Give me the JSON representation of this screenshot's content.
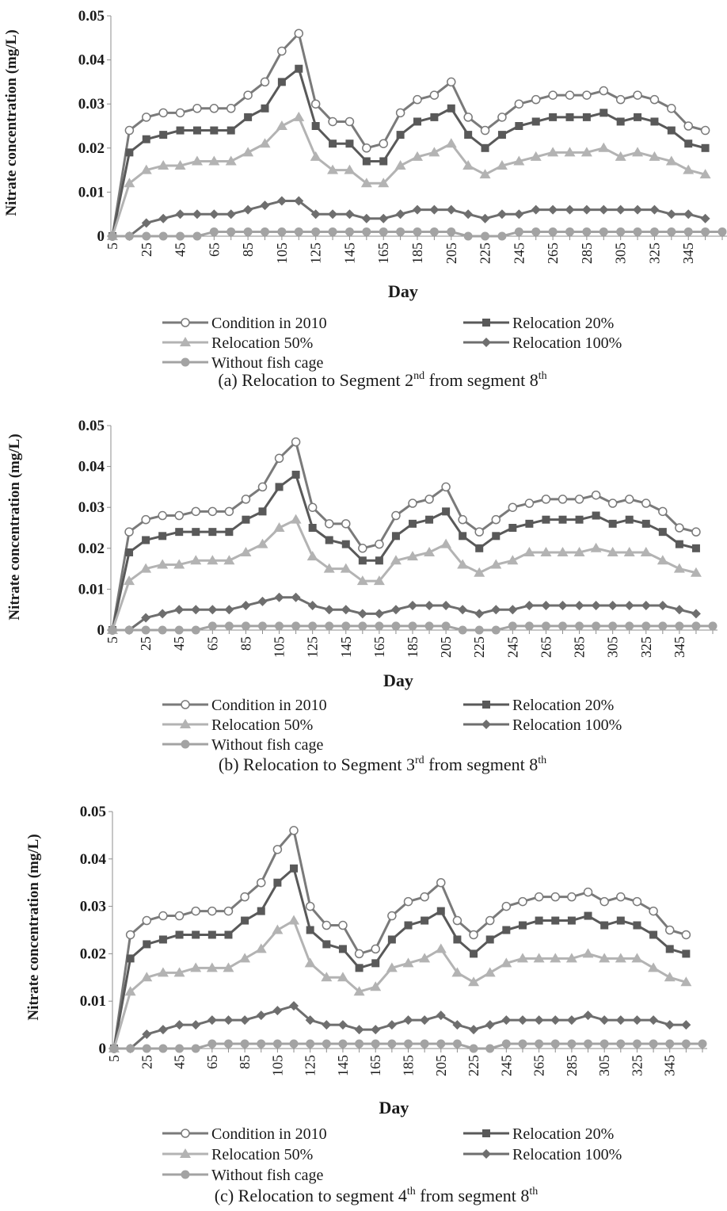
{
  "chart_data": [
    {
      "type": "line",
      "panel": "a",
      "caption_parts": [
        "(a)  Relocation to Segment 2",
        "nd",
        " from segment 8",
        "th"
      ],
      "xlabel": "Day",
      "ylabel": "Nitrate concentration (mg/L)",
      "ylim": [
        0,
        0.05
      ],
      "yticks": [
        "0",
        "0.01",
        "0.02",
        "0.03",
        "0.04",
        "0.05"
      ],
      "xticks": [
        "5",
        "25",
        "45",
        "65",
        "85",
        "105",
        "125",
        "145",
        "165",
        "185",
        "205",
        "225",
        "245",
        "265",
        "285",
        "305",
        "325",
        "345"
      ],
      "x": [
        5,
        15,
        25,
        35,
        45,
        55,
        65,
        75,
        85,
        95,
        105,
        115,
        125,
        135,
        145,
        155,
        165,
        175,
        185,
        195,
        205,
        215,
        225,
        235,
        245,
        255,
        265,
        275,
        285,
        295,
        305,
        315,
        325,
        335,
        345,
        355,
        365
      ],
      "grid": false,
      "legend_position": "bottom",
      "series": [
        {
          "name": "Condition in 2010",
          "marker": "circle-open",
          "color": "#7a7a7a",
          "values": [
            0,
            0.024,
            0.027,
            0.028,
            0.028,
            0.029,
            0.029,
            0.029,
            0.032,
            0.035,
            0.042,
            0.046,
            0.03,
            0.026,
            0.026,
            0.02,
            0.021,
            0.028,
            0.031,
            0.032,
            0.035,
            0.027,
            0.024,
            0.027,
            0.03,
            0.031,
            0.032,
            0.032,
            0.032,
            0.033,
            0.031,
            0.032,
            0.031,
            0.029,
            0.025,
            0.024,
            null
          ]
        },
        {
          "name": "Relocation 20%",
          "marker": "square",
          "color": "#595959",
          "values": [
            0,
            0.019,
            0.022,
            0.023,
            0.024,
            0.024,
            0.024,
            0.024,
            0.027,
            0.029,
            0.035,
            0.038,
            0.025,
            0.021,
            0.021,
            0.017,
            0.017,
            0.023,
            0.026,
            0.027,
            0.029,
            0.023,
            0.02,
            0.023,
            0.025,
            0.026,
            0.027,
            0.027,
            0.027,
            0.028,
            0.026,
            0.027,
            0.026,
            0.024,
            0.021,
            0.02,
            null
          ]
        },
        {
          "name": "Relocation 50%",
          "marker": "triangle",
          "color": "#b3b3b3",
          "values": [
            0,
            0.012,
            0.015,
            0.016,
            0.016,
            0.017,
            0.017,
            0.017,
            0.019,
            0.021,
            0.025,
            0.027,
            0.018,
            0.015,
            0.015,
            0.012,
            0.012,
            0.016,
            0.018,
            0.019,
            0.021,
            0.016,
            0.014,
            0.016,
            0.017,
            0.018,
            0.019,
            0.019,
            0.019,
            0.02,
            0.018,
            0.019,
            0.018,
            0.017,
            0.015,
            0.014,
            null
          ]
        },
        {
          "name": "Relocation 100%",
          "marker": "diamond",
          "color": "#6e6e6e",
          "values": [
            0,
            0,
            0.003,
            0.004,
            0.005,
            0.005,
            0.005,
            0.005,
            0.006,
            0.007,
            0.008,
            0.008,
            0.005,
            0.005,
            0.005,
            0.004,
            0.004,
            0.005,
            0.006,
            0.006,
            0.006,
            0.005,
            0.004,
            0.005,
            0.005,
            0.006,
            0.006,
            0.006,
            0.006,
            0.006,
            0.006,
            0.006,
            0.006,
            0.005,
            0.005,
            0.004,
            null
          ]
        },
        {
          "name": "Without fish cage",
          "marker": "circle",
          "color": "#a3a3a3",
          "values": [
            0,
            0,
            0,
            0,
            0,
            0,
            0.001,
            0.001,
            0.001,
            0.001,
            0.001,
            0.001,
            0.001,
            0.001,
            0.001,
            0.001,
            0.001,
            0.001,
            0.001,
            0.001,
            0.001,
            0,
            0,
            0,
            0.001,
            0.001,
            0.001,
            0.001,
            0.001,
            0.001,
            0.001,
            0.001,
            0.001,
            0.001,
            0.001,
            0.001,
            0.001
          ]
        }
      ]
    },
    {
      "type": "line",
      "panel": "b",
      "caption_parts": [
        "(b)  Relocation to Segment 3",
        "rd",
        " from segment 8",
        "th"
      ],
      "xlabel": "Day",
      "ylabel": "Nitrate concentration (mg/L)",
      "ylim": [
        0,
        0.05
      ],
      "yticks": [
        "0",
        "0.01",
        "0.02",
        "0.03",
        "0.04",
        "0.05"
      ],
      "xticks": [
        "5",
        "25",
        "45",
        "65",
        "85",
        "105",
        "125",
        "145",
        "165",
        "185",
        "205",
        "225",
        "245",
        "265",
        "285",
        "305",
        "325",
        "345"
      ],
      "x": [
        5,
        15,
        25,
        35,
        45,
        55,
        65,
        75,
        85,
        95,
        105,
        115,
        125,
        135,
        145,
        155,
        165,
        175,
        185,
        195,
        205,
        215,
        225,
        235,
        245,
        255,
        265,
        275,
        285,
        295,
        305,
        315,
        325,
        335,
        345,
        355,
        365
      ],
      "grid": false,
      "legend_position": "bottom",
      "series": [
        {
          "name": "Condition in 2010",
          "marker": "circle-open",
          "color": "#7a7a7a",
          "values": [
            0,
            0.024,
            0.027,
            0.028,
            0.028,
            0.029,
            0.029,
            0.029,
            0.032,
            0.035,
            0.042,
            0.046,
            0.03,
            0.026,
            0.026,
            0.02,
            0.021,
            0.028,
            0.031,
            0.032,
            0.035,
            0.027,
            0.024,
            0.027,
            0.03,
            0.031,
            0.032,
            0.032,
            0.032,
            0.033,
            0.031,
            0.032,
            0.031,
            0.029,
            0.025,
            0.024,
            null
          ]
        },
        {
          "name": "Relocation 20%",
          "marker": "square",
          "color": "#595959",
          "values": [
            0,
            0.019,
            0.022,
            0.023,
            0.024,
            0.024,
            0.024,
            0.024,
            0.027,
            0.029,
            0.035,
            0.038,
            0.025,
            0.022,
            0.021,
            0.017,
            0.017,
            0.023,
            0.026,
            0.027,
            0.029,
            0.023,
            0.02,
            0.023,
            0.025,
            0.026,
            0.027,
            0.027,
            0.027,
            0.028,
            0.026,
            0.027,
            0.026,
            0.024,
            0.021,
            0.02,
            null
          ]
        },
        {
          "name": "Relocation 50%",
          "marker": "triangle",
          "color": "#b3b3b3",
          "values": [
            0,
            0.012,
            0.015,
            0.016,
            0.016,
            0.017,
            0.017,
            0.017,
            0.019,
            0.021,
            0.025,
            0.027,
            0.018,
            0.015,
            0.015,
            0.012,
            0.012,
            0.017,
            0.018,
            0.019,
            0.021,
            0.016,
            0.014,
            0.016,
            0.017,
            0.019,
            0.019,
            0.019,
            0.019,
            0.02,
            0.019,
            0.019,
            0.019,
            0.017,
            0.015,
            0.014,
            null
          ]
        },
        {
          "name": "Relocation 100%",
          "marker": "diamond",
          "color": "#6e6e6e",
          "values": [
            0,
            0,
            0.003,
            0.004,
            0.005,
            0.005,
            0.005,
            0.005,
            0.006,
            0.007,
            0.008,
            0.008,
            0.006,
            0.005,
            0.005,
            0.004,
            0.004,
            0.005,
            0.006,
            0.006,
            0.006,
            0.005,
            0.004,
            0.005,
            0.005,
            0.006,
            0.006,
            0.006,
            0.006,
            0.006,
            0.006,
            0.006,
            0.006,
            0.006,
            0.005,
            0.004,
            null
          ]
        },
        {
          "name": "Without fish cage",
          "marker": "circle",
          "color": "#a3a3a3",
          "values": [
            0,
            0,
            0,
            0,
            0,
            0,
            0.001,
            0.001,
            0.001,
            0.001,
            0.001,
            0.001,
            0.001,
            0.001,
            0.001,
            0.001,
            0.001,
            0.001,
            0.001,
            0.001,
            0.001,
            0,
            0,
            0,
            0.001,
            0.001,
            0.001,
            0.001,
            0.001,
            0.001,
            0.001,
            0.001,
            0.001,
            0.001,
            0.001,
            0.001,
            0.001
          ]
        }
      ]
    },
    {
      "type": "line",
      "panel": "c",
      "caption_parts": [
        "(c) Relocation to segment 4",
        "th",
        " from segment 8",
        "th"
      ],
      "xlabel": "Day",
      "ylabel": "Nitrate concentration (mg/L)",
      "ylim": [
        0,
        0.05
      ],
      "yticks": [
        "0",
        "0.01",
        "0.02",
        "0.03",
        "0.04",
        "0.05"
      ],
      "xticks": [
        "5",
        "25",
        "45",
        "65",
        "85",
        "105",
        "125",
        "145",
        "165",
        "185",
        "205",
        "225",
        "245",
        "265",
        "285",
        "305",
        "325",
        "345"
      ],
      "x": [
        5,
        15,
        25,
        35,
        45,
        55,
        65,
        75,
        85,
        95,
        105,
        115,
        125,
        135,
        145,
        155,
        165,
        175,
        185,
        195,
        205,
        215,
        225,
        235,
        245,
        255,
        265,
        275,
        285,
        295,
        305,
        315,
        325,
        335,
        345,
        355,
        365
      ],
      "grid": false,
      "legend_position": "bottom",
      "series": [
        {
          "name": "Condition in 2010",
          "marker": "circle-open",
          "color": "#7a7a7a",
          "values": [
            0,
            0.024,
            0.027,
            0.028,
            0.028,
            0.029,
            0.029,
            0.029,
            0.032,
            0.035,
            0.042,
            0.046,
            0.03,
            0.026,
            0.026,
            0.02,
            0.021,
            0.028,
            0.031,
            0.032,
            0.035,
            0.027,
            0.024,
            0.027,
            0.03,
            0.031,
            0.032,
            0.032,
            0.032,
            0.033,
            0.031,
            0.032,
            0.031,
            0.029,
            0.025,
            0.024,
            null
          ]
        },
        {
          "name": "Relocation 20%",
          "marker": "square",
          "color": "#595959",
          "values": [
            0,
            0.019,
            0.022,
            0.023,
            0.024,
            0.024,
            0.024,
            0.024,
            0.027,
            0.029,
            0.035,
            0.038,
            0.025,
            0.022,
            0.021,
            0.017,
            0.018,
            0.023,
            0.026,
            0.027,
            0.029,
            0.023,
            0.02,
            0.023,
            0.025,
            0.026,
            0.027,
            0.027,
            0.027,
            0.028,
            0.026,
            0.027,
            0.026,
            0.024,
            0.021,
            0.02,
            null
          ]
        },
        {
          "name": "Relocation 50%",
          "marker": "triangle",
          "color": "#b3b3b3",
          "values": [
            0,
            0.012,
            0.015,
            0.016,
            0.016,
            0.017,
            0.017,
            0.017,
            0.019,
            0.021,
            0.025,
            0.027,
            0.018,
            0.015,
            0.015,
            0.012,
            0.013,
            0.017,
            0.018,
            0.019,
            0.021,
            0.016,
            0.014,
            0.016,
            0.018,
            0.019,
            0.019,
            0.019,
            0.019,
            0.02,
            0.019,
            0.019,
            0.019,
            0.017,
            0.015,
            0.014,
            null
          ]
        },
        {
          "name": "Relocation 100%",
          "marker": "diamond",
          "color": "#6e6e6e",
          "values": [
            0,
            0,
            0.003,
            0.004,
            0.005,
            0.005,
            0.006,
            0.006,
            0.006,
            0.007,
            0.008,
            0.009,
            0.006,
            0.005,
            0.005,
            0.004,
            0.004,
            0.005,
            0.006,
            0.006,
            0.007,
            0.005,
            0.004,
            0.005,
            0.006,
            0.006,
            0.006,
            0.006,
            0.006,
            0.007,
            0.006,
            0.006,
            0.006,
            0.006,
            0.005,
            0.005,
            null
          ]
        },
        {
          "name": "Without fish cage",
          "marker": "circle",
          "color": "#a3a3a3",
          "values": [
            0,
            0,
            0,
            0,
            0,
            0,
            0.001,
            0.001,
            0.001,
            0.001,
            0.001,
            0.001,
            0.001,
            0.001,
            0.001,
            0.001,
            0.001,
            0.001,
            0.001,
            0.001,
            0.001,
            0.001,
            0,
            0,
            0.001,
            0.001,
            0.001,
            0.001,
            0.001,
            0.001,
            0.001,
            0.001,
            0.001,
            0.001,
            0.001,
            0.001,
            0.001
          ]
        }
      ]
    }
  ]
}
